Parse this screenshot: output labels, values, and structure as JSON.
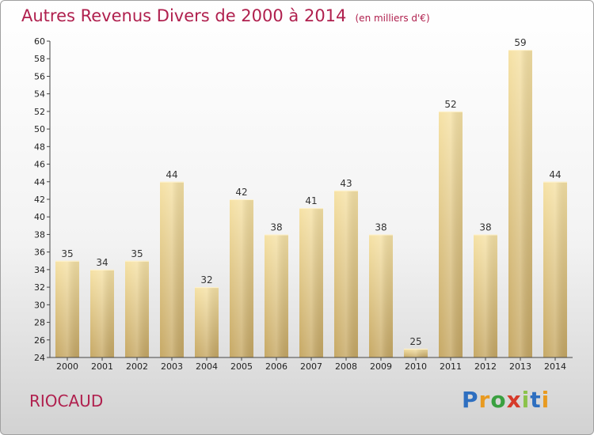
{
  "header": {
    "title": "Autres Revenus Divers de 2000 à 2014",
    "unit": "(en milliers d'€)"
  },
  "footer": {
    "place": "RIOCAUD",
    "logo": "Proxiti"
  },
  "colors": {
    "title": "#b0204e",
    "bar_light": "#f6e2a6",
    "bar_dark": "#c6a865",
    "axis": "#444444",
    "grid": "#dddddd"
  },
  "chart_data": {
    "type": "bar",
    "title": "Autres Revenus Divers de 2000 à 2014",
    "subtitle": "(en milliers d'€)",
    "categories": [
      "2000",
      "2001",
      "2002",
      "2003",
      "2004",
      "2005",
      "2006",
      "2007",
      "2008",
      "2009",
      "2010",
      "2011",
      "2012",
      "2013",
      "2014"
    ],
    "values": [
      35,
      34,
      35,
      44,
      32,
      42,
      38,
      41,
      43,
      38,
      25,
      52,
      38,
      59,
      44
    ],
    "ylim": [
      24,
      60
    ],
    "ytick_step": 2,
    "grid": false,
    "data_labels": true,
    "xlabel": "",
    "ylabel": ""
  }
}
